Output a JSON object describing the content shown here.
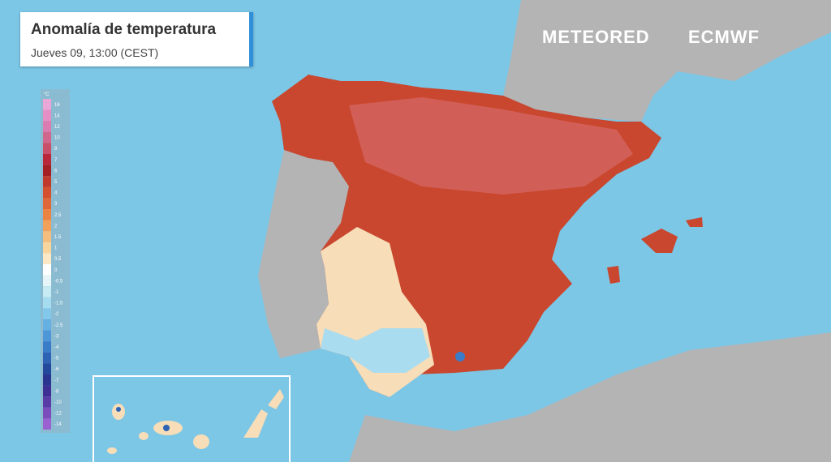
{
  "header": {
    "title": "Anomalía de temperatura",
    "subtitle": "Jueves 09, 13:00 (CEST)"
  },
  "logos": {
    "brand": "METEORED",
    "partner": "ECMWF"
  },
  "legend": {
    "unit": "°C",
    "ticks": [
      {
        "value": 16,
        "color": "#e9a6d6"
      },
      {
        "value": 14,
        "color": "#e58fc6"
      },
      {
        "value": 12,
        "color": "#db7bb0"
      },
      {
        "value": 10,
        "color": "#d2678e"
      },
      {
        "value": 8,
        "color": "#c84f67"
      },
      {
        "value": 7,
        "color": "#b8283a"
      },
      {
        "value": 6,
        "color": "#a41f24"
      },
      {
        "value": 5,
        "color": "#c0392b"
      },
      {
        "value": 4,
        "color": "#d4502e"
      },
      {
        "value": 3,
        "color": "#e0673a"
      },
      {
        "value": 2.5,
        "color": "#eb8442"
      },
      {
        "value": 2,
        "color": "#f2a05a"
      },
      {
        "value": 1.5,
        "color": "#f6bd7c"
      },
      {
        "value": 1,
        "color": "#f9d59e"
      },
      {
        "value": 0.5,
        "color": "#fbe8c4"
      },
      {
        "value": 0,
        "color": "#ffffff"
      },
      {
        "value": -0.5,
        "color": "#e6f5f8"
      },
      {
        "value": -1,
        "color": "#c6ebf3"
      },
      {
        "value": -1.5,
        "color": "#a5dcef"
      },
      {
        "value": -2,
        "color": "#83c8eb"
      },
      {
        "value": -2.5,
        "color": "#65b0e3"
      },
      {
        "value": -3,
        "color": "#4d96d8"
      },
      {
        "value": -4,
        "color": "#3a7cc8"
      },
      {
        "value": -5,
        "color": "#2d62b4"
      },
      {
        "value": -6,
        "color": "#24489c"
      },
      {
        "value": -7,
        "color": "#2a3590"
      },
      {
        "value": -8,
        "color": "#3e2f94"
      },
      {
        "value": -10,
        "color": "#5a3aa6"
      },
      {
        "value": -12,
        "color": "#7a4cbc"
      },
      {
        "value": -14,
        "color": "#9a62d0"
      }
    ]
  }
}
